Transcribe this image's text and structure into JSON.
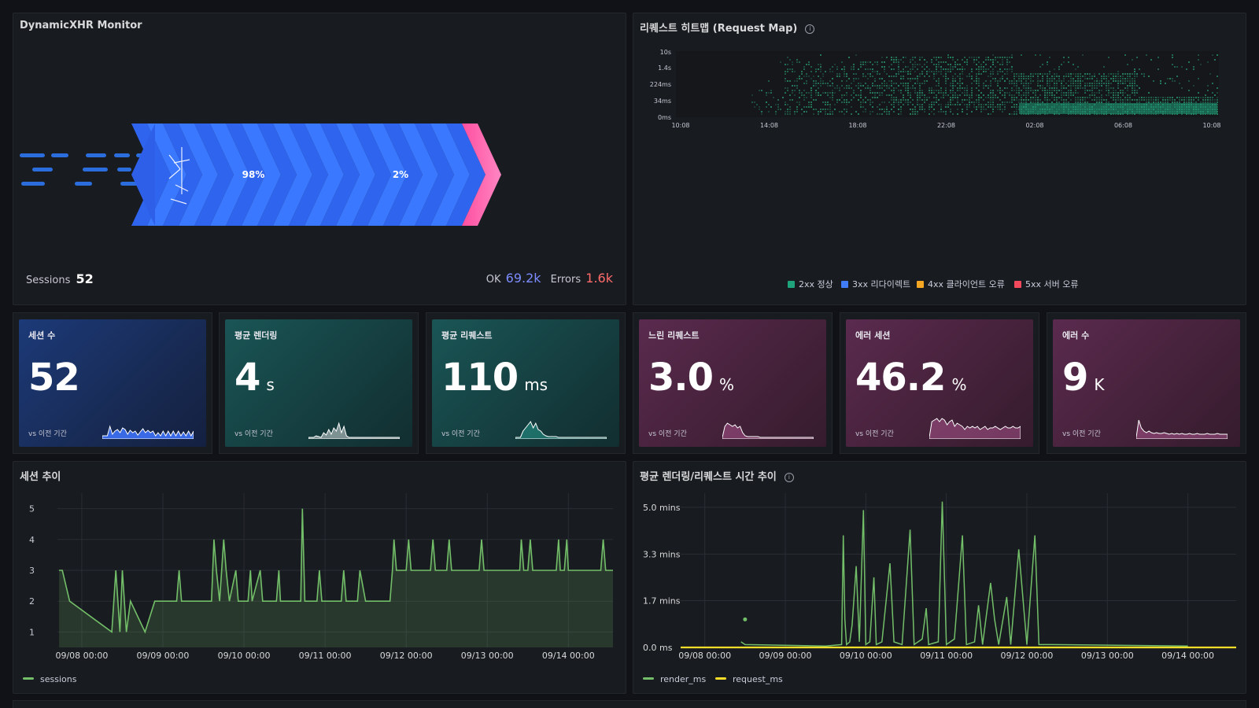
{
  "monitor": {
    "title": "DynamicXHR Monitor",
    "pct_ok": "98%",
    "pct_err": "2%",
    "sessions_label": "Sessions",
    "sessions_value": "52",
    "ok_label": "OK",
    "ok_value": "69.2k",
    "errors_label": "Errors",
    "errors_value": "1.6k",
    "colors": {
      "ok": "#3d71f5",
      "error": "#ff5a9e"
    }
  },
  "heatmap": {
    "title": "리퀘스트 히트맵 (Request Map)",
    "y_ticks": [
      "10s",
      "1.4s",
      "224ms",
      "34ms",
      "0ms"
    ],
    "x_ticks": [
      "10:08",
      "14:08",
      "18:08",
      "22:08",
      "02:08",
      "06:08",
      "10:08"
    ],
    "legend": [
      {
        "label": "2xx 정상",
        "color": "#1fa37a"
      },
      {
        "label": "3xx 리다이렉트",
        "color": "#3f7cf5"
      },
      {
        "label": "4xx 클라이언트 오류",
        "color": "#f5a623"
      },
      {
        "label": "5xx 서버 오류",
        "color": "#f2495c"
      }
    ]
  },
  "stats": [
    {
      "label": "세션 수",
      "value": "52",
      "unit": "",
      "compare": "vs 이전 기간"
    },
    {
      "label": "평균 렌더링",
      "value": "4",
      "unit": "s",
      "compare": "vs 이전 기간"
    },
    {
      "label": "평균 리퀘스트",
      "value": "110",
      "unit": "ms",
      "compare": "vs 이전 기간"
    },
    {
      "label": "느린 리퀘스트",
      "value": "3.0",
      "unit": "%",
      "compare": "vs 이전 기간"
    },
    {
      "label": "에러 세션",
      "value": "46.2",
      "unit": "%",
      "compare": "vs 이전 기간"
    },
    {
      "label": "에러 수",
      "value": "9",
      "unit": "K",
      "compare": "vs 이전 기간"
    }
  ],
  "sessions_chart": {
    "title": "세션 추이",
    "legend": "sessions",
    "color": "#73bf69",
    "y_ticks": [
      "5",
      "4",
      "3",
      "2",
      "1"
    ],
    "x_ticks": [
      "09/08 00:00",
      "09/09 00:00",
      "09/10 00:00",
      "09/11 00:00",
      "09/12 00:00",
      "09/13 00:00",
      "09/14 00:00"
    ]
  },
  "timing_chart": {
    "title": "평균 렌더링/리퀘스트 시간 추이",
    "y_ticks": [
      "5.0 mins",
      "3.3 mins",
      "1.7 mins",
      "0.0 ms"
    ],
    "x_ticks": [
      "09/08 00:00",
      "09/09 00:00",
      "09/10 00:00",
      "09/11 00:00",
      "09/12 00:00",
      "09/13 00:00",
      "09/14 00:00"
    ],
    "legend": [
      {
        "label": "render_ms",
        "color": "#73bf69"
      },
      {
        "label": "request_ms",
        "color": "#fade2a"
      }
    ]
  },
  "chart_data": [
    {
      "type": "line",
      "ylim": [
        0.5,
        5.5
      ],
      "grid": true,
      "legend_position": "bottom-left",
      "series": [
        {
          "name": "sessions",
          "points": [
            [
              7.72,
              3
            ],
            [
              7.76,
              3
            ],
            [
              7.85,
              2
            ],
            [
              8.37,
              1
            ],
            [
              8.42,
              3
            ],
            [
              8.47,
              1
            ],
            [
              8.5,
              3
            ],
            [
              8.55,
              1
            ],
            [
              8.6,
              2
            ],
            [
              8.78,
              1
            ],
            [
              8.9,
              2
            ],
            [
              9.17,
              2
            ],
            [
              9.2,
              3
            ],
            [
              9.23,
              2
            ],
            [
              9.6,
              2
            ],
            [
              9.63,
              4
            ],
            [
              9.66,
              3
            ],
            [
              9.7,
              2
            ],
            [
              9.75,
              4
            ],
            [
              9.78,
              3
            ],
            [
              9.82,
              2
            ],
            [
              9.9,
              3
            ],
            [
              9.93,
              2
            ],
            [
              10.05,
              2
            ],
            [
              10.08,
              3
            ],
            [
              10.1,
              2
            ],
            [
              10.2,
              3
            ],
            [
              10.23,
              2
            ],
            [
              10.4,
              2
            ],
            [
              10.43,
              3
            ],
            [
              10.45,
              2
            ],
            [
              10.7,
              2
            ],
            [
              10.72,
              5
            ],
            [
              10.75,
              2
            ],
            [
              10.9,
              2
            ],
            [
              10.93,
              3
            ],
            [
              10.96,
              2
            ],
            [
              11.2,
              2
            ],
            [
              11.23,
              3
            ],
            [
              11.26,
              2
            ],
            [
              11.4,
              2
            ],
            [
              11.43,
              3
            ],
            [
              11.5,
              2
            ],
            [
              11.8,
              2
            ],
            [
              11.83,
              3
            ],
            [
              11.85,
              4
            ],
            [
              11.88,
              3
            ],
            [
              12.0,
              3
            ],
            [
              12.03,
              4
            ],
            [
              12.06,
              3
            ],
            [
              12.3,
              3
            ],
            [
              12.33,
              4
            ],
            [
              12.36,
              3
            ],
            [
              12.5,
              3
            ],
            [
              12.53,
              4
            ],
            [
              12.56,
              3
            ],
            [
              12.9,
              3
            ],
            [
              12.93,
              4
            ],
            [
              12.96,
              3
            ],
            [
              13.4,
              3
            ],
            [
              13.42,
              4
            ],
            [
              13.45,
              3
            ],
            [
              13.5,
              3
            ],
            [
              13.53,
              4
            ],
            [
              13.56,
              3
            ],
            [
              13.85,
              3
            ],
            [
              13.88,
              4
            ],
            [
              13.9,
              3
            ],
            [
              13.95,
              3
            ],
            [
              13.98,
              4
            ],
            [
              14.0,
              3
            ],
            [
              14.4,
              3
            ],
            [
              14.43,
              4
            ],
            [
              14.46,
              3
            ],
            [
              14.55,
              3
            ]
          ]
        }
      ],
      "x_unit": "days (09/dd)"
    },
    {
      "type": "line",
      "ylim": [
        0,
        5.5
      ],
      "grid": true,
      "legend_position": "bottom-left",
      "series": [
        {
          "name": "render_ms",
          "points": [
            [
              8.45,
              0.2
            ],
            [
              8.5,
              0.1
            ],
            [
              9.5,
              0.05
            ],
            [
              9.7,
              0.1
            ],
            [
              9.72,
              4.0
            ],
            [
              9.74,
              1.0
            ],
            [
              9.76,
              0.1
            ],
            [
              9.8,
              0.2
            ],
            [
              9.83,
              0.8
            ],
            [
              9.88,
              2.9
            ],
            [
              9.92,
              0.2
            ],
            [
              9.97,
              4.9
            ],
            [
              10.0,
              0.1
            ],
            [
              10.05,
              0.2
            ],
            [
              10.1,
              2.5
            ],
            [
              10.13,
              0.1
            ],
            [
              10.2,
              0.2
            ],
            [
              10.3,
              3.0
            ],
            [
              10.35,
              0.2
            ],
            [
              10.45,
              0.1
            ],
            [
              10.55,
              4.2
            ],
            [
              10.6,
              0.1
            ],
            [
              10.7,
              0.3
            ],
            [
              10.75,
              1.4
            ],
            [
              10.78,
              0.1
            ],
            [
              10.9,
              0.2
            ],
            [
              10.95,
              5.2
            ],
            [
              11.0,
              0.1
            ],
            [
              11.1,
              0.3
            ],
            [
              11.2,
              4.0
            ],
            [
              11.25,
              0.1
            ],
            [
              11.35,
              0.2
            ],
            [
              11.4,
              1.5
            ],
            [
              11.45,
              0.1
            ],
            [
              11.55,
              2.3
            ],
            [
              11.6,
              1.0
            ],
            [
              11.65,
              0.1
            ],
            [
              11.75,
              1.8
            ],
            [
              11.8,
              0.1
            ],
            [
              11.9,
              3.5
            ],
            [
              12.0,
              0.1
            ],
            [
              12.1,
              4.0
            ],
            [
              12.15,
              0.1
            ],
            [
              12.3,
              0.1
            ],
            [
              14.0,
              0.05
            ]
          ]
        },
        {
          "name": "request_ms",
          "points": [
            [
              7.7,
              0.0
            ],
            [
              14.6,
              0.0
            ]
          ]
        }
      ]
    }
  ]
}
